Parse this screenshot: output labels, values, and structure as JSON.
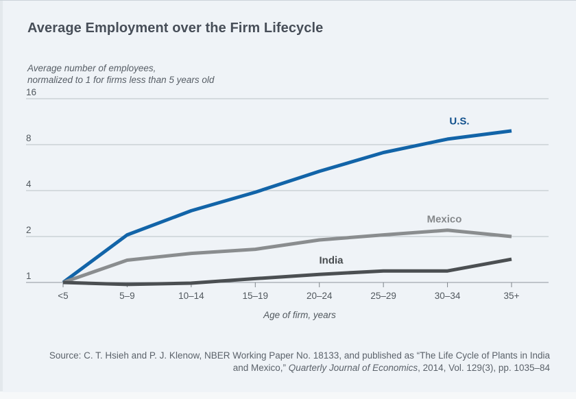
{
  "header": {
    "title": "Average Employment over the Firm Lifecycle"
  },
  "chart_data": {
    "type": "line",
    "title": "Average Employment over the Firm Lifecycle",
    "subtitle_lines": [
      "Average number of employees,",
      "normalized to 1 for firms less than 5 years old"
    ],
    "categories": [
      "<5",
      "5–9",
      "10–14",
      "15–19",
      "20–24",
      "25–29",
      "30–34",
      "35+"
    ],
    "xlabel": "Age of firm, years",
    "ylabel": "Average number of employees, normalized to 1 for firms less than 5 years old",
    "y_scale": "log2",
    "y_ticks": [
      1,
      2,
      4,
      8,
      16
    ],
    "ylim": [
      1,
      16
    ],
    "grid": "horizontal",
    "legend_position": "inline-labels",
    "series": [
      {
        "name": "U.S.",
        "color": "#1264a8",
        "values": [
          1.0,
          2.05,
          2.95,
          3.9,
          5.35,
          7.1,
          8.7,
          9.85
        ]
      },
      {
        "name": "Mexico",
        "color": "#8a8d8f",
        "values": [
          1.0,
          1.4,
          1.55,
          1.65,
          1.9,
          2.05,
          2.2,
          2.0
        ]
      },
      {
        "name": "India",
        "color": "#4b4f52",
        "values": [
          1.0,
          0.97,
          0.99,
          1.06,
          1.13,
          1.19,
          1.19,
          1.42
        ]
      }
    ],
    "series_labels": [
      {
        "text": "U.S.",
        "x": 670,
        "y": 177,
        "color": "#11508c"
      },
      {
        "text": "Mexico",
        "x": 648,
        "y": 320,
        "color": "#85888b"
      },
      {
        "text": "India",
        "x": 483,
        "y": 380,
        "color": "#474b4e"
      }
    ],
    "colors": {
      "gridline": "#b9c0c6",
      "baseline": "#8f969c",
      "tick": "#7c8389",
      "tick_label": "#51585e"
    }
  },
  "source": {
    "line1": "Source: C. T. Hsieh and P. J. Klenow, NBER Working Paper No. 18133, and published as “The Life Cycle of Plants in India",
    "line2_prefix": "and Mexico,” ",
    "line2_italic": "Quarterly Journal of Economics",
    "line2_suffix": ", 2014, Vol. 129(3), pp. 1035–84"
  }
}
